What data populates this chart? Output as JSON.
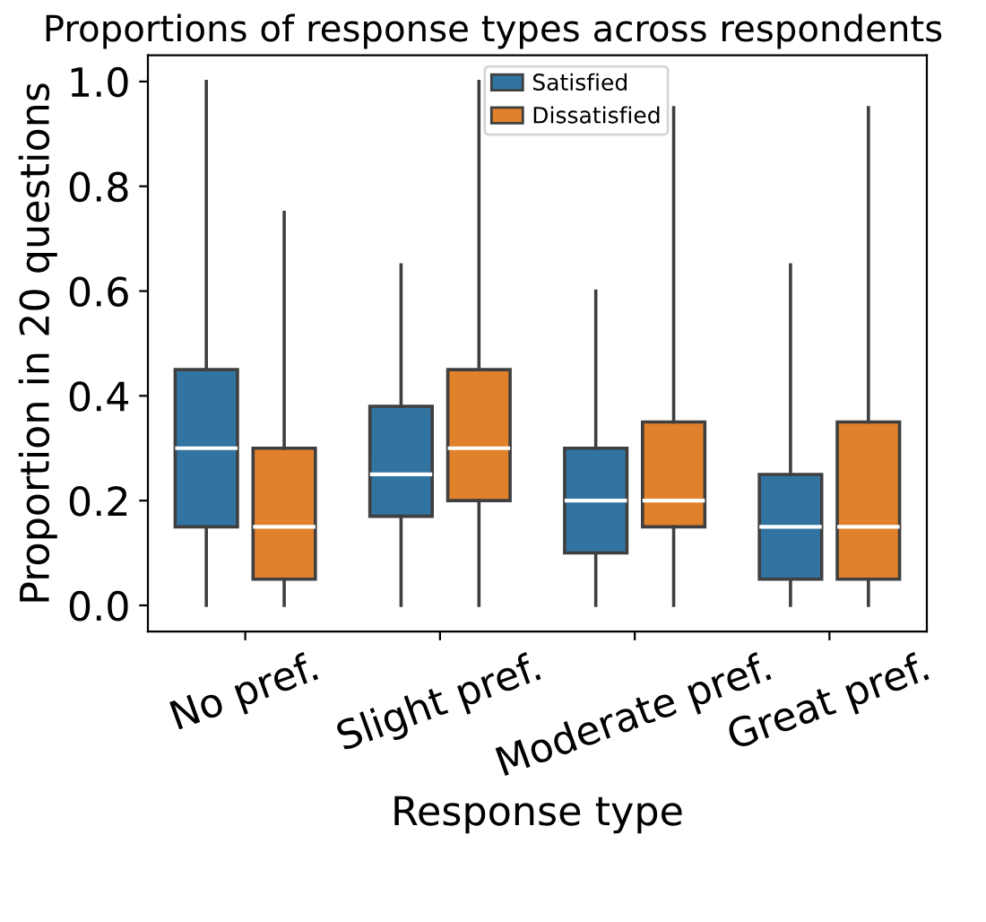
{
  "chart_data": {
    "type": "box",
    "title": "Proportions of response types across respondents",
    "xlabel": "Response type",
    "ylabel": "Proportion in 20 questions",
    "categories": [
      "No pref.",
      "Slight pref.",
      "Moderate pref.",
      "Great pref."
    ],
    "series": [
      {
        "name": "Satisfied",
        "color": "#3274a1",
        "boxes": [
          {
            "low": 0,
            "q1": 0.15,
            "median": 0.3,
            "q3": 0.45,
            "high": 1.0
          },
          {
            "low": 0,
            "q1": 0.17,
            "median": 0.25,
            "q3": 0.38,
            "high": 0.65
          },
          {
            "low": 0,
            "q1": 0.1,
            "median": 0.2,
            "q3": 0.3,
            "high": 0.6
          },
          {
            "low": 0,
            "q1": 0.05,
            "median": 0.15,
            "q3": 0.25,
            "high": 0.65
          }
        ]
      },
      {
        "name": "Dissatisfied",
        "color": "#e1812c",
        "boxes": [
          {
            "low": 0,
            "q1": 0.05,
            "median": 0.15,
            "q3": 0.3,
            "high": 0.75
          },
          {
            "low": 0,
            "q1": 0.2,
            "median": 0.3,
            "q3": 0.45,
            "high": 1.0
          },
          {
            "low": 0,
            "q1": 0.15,
            "median": 0.2,
            "q3": 0.35,
            "high": 0.95
          },
          {
            "low": 0,
            "q1": 0.05,
            "median": 0.15,
            "q3": 0.35,
            "high": 0.95
          }
        ]
      }
    ],
    "ylim": [
      -0.05,
      1.05
    ],
    "yticks": [
      {
        "value": 0,
        "label": "0.0"
      },
      {
        "value": 0.2,
        "label": "0.2"
      },
      {
        "value": 0.4,
        "label": "0.4"
      },
      {
        "value": 0.6,
        "label": "0.6"
      },
      {
        "value": 0.8,
        "label": "0.8"
      },
      {
        "value": 1.0,
        "label": "1.0"
      }
    ],
    "grid": false,
    "legend": "top"
  }
}
